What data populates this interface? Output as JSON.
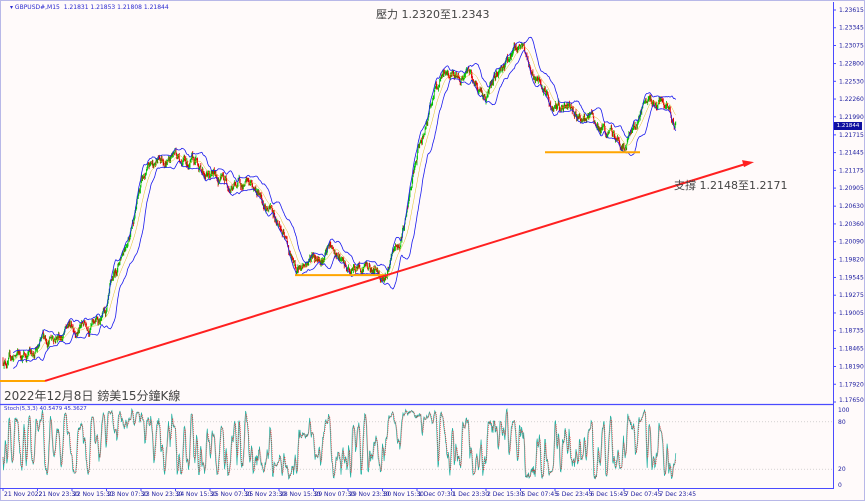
{
  "header": {
    "symbol": "GBPUSD#,M15",
    "ohlc": "1.21831 1.21853 1.21808 1.21844"
  },
  "annotations": {
    "resistance": "壓力 1.2320至1.2343",
    "support": "支撐 1.2148至1.2171",
    "caption": "2022年12月8日 鎊美15分鐘K線"
  },
  "current_price": "1.21844",
  "indicator": {
    "label": "Stoch(5,3,3) 40.5479 45.3627",
    "levels": [
      "100",
      "80",
      "20",
      "0"
    ]
  },
  "colors": {
    "up": "#00c000",
    "down": "#e00000",
    "bands": "#1a1aee",
    "trend": "#ff2020",
    "support_line": "#ffa500",
    "stoch_main": "#20b0a0",
    "stoch_signal": "#e03030",
    "axis": "#4a4aff"
  },
  "chart_data": {
    "type": "candlestick",
    "timeframe": "M15",
    "price_ticks": [
      "1.23615",
      "1.23345",
      "1.23075",
      "1.22800",
      "1.22530",
      "1.22260",
      "1.21990",
      "1.21715",
      "1.21445",
      "1.21175",
      "1.20905",
      "1.20630",
      "1.20360",
      "1.20090",
      "1.19820",
      "1.19545",
      "1.19275",
      "1.19005",
      "1.18735",
      "1.18465",
      "1.18190",
      "1.17920",
      "1.17650"
    ],
    "ylim": [
      1.1765,
      1.23615
    ],
    "time_ticks": [
      "21 Nov 2022",
      "21 Nov 23:30",
      "22 Nov 15:30",
      "23 Nov 07:30",
      "23 Nov 23:30",
      "24 Nov 15:30",
      "25 Nov 07:30",
      "25 Nov 23:30",
      "28 Nov 15:30",
      "29 Nov 07:30",
      "29 Nov 23:30",
      "30 Nov 15:30",
      "1 Dec 07:30",
      "1 Dec 23:30",
      "2 Dec 15:30",
      "5 Dec 07:45",
      "5 Dec 23:45",
      "6 Dec 15:45",
      "7 Dec 07:45",
      "7 Dec 23:45"
    ],
    "approx_close_path": [
      1.1829,
      1.1835,
      1.1844,
      1.187,
      1.188,
      1.1888,
      1.1893,
      1.2,
      1.21,
      1.213,
      1.2148,
      1.2125,
      1.211,
      1.21,
      1.2095,
      1.208,
      1.204,
      1.1958,
      1.199,
      1.2,
      1.1955,
      1.1975,
      1.196,
      1.2,
      1.213,
      1.224,
      1.2262,
      1.2263,
      1.223,
      1.228,
      1.231,
      1.225,
      1.22,
      1.2215,
      1.219,
      1.217,
      1.215,
      1.2205,
      1.2215,
      1.21844
    ],
    "bollinger_bands": true,
    "horizontal_levels": [
      1.1797,
      1.1958,
      1.2145
    ],
    "trendline": {
      "from": [
        "21 Nov 2022",
        1.1797
      ],
      "to": [
        "8 Dec",
        1.213
      ]
    },
    "stochastic": {
      "k": 40.5479,
      "d": 45.3627,
      "levels": [
        80,
        20
      ],
      "ylim": [
        0,
        100
      ]
    }
  }
}
